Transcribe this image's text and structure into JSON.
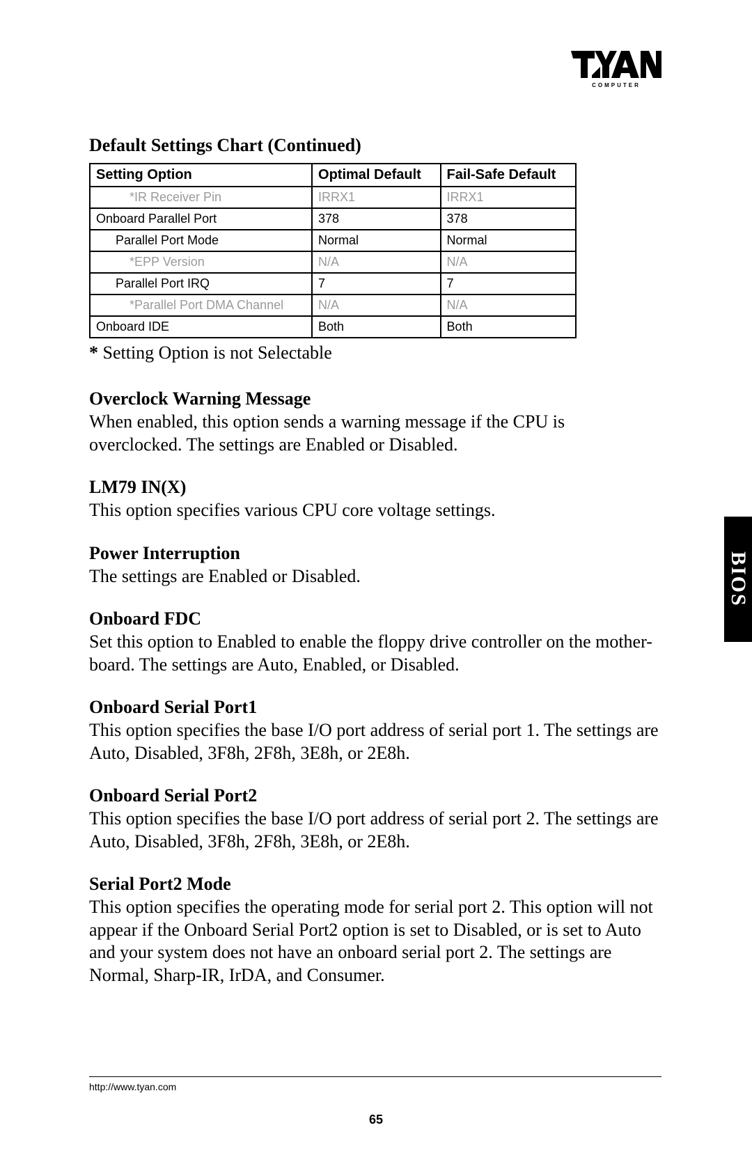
{
  "logo": {
    "brand": "TYAN",
    "subtitle": "COMPUTER"
  },
  "sideTab": "BIOS",
  "sectionTitle": "Default Settings Chart  (Continued)",
  "table": {
    "headers": [
      "Setting Option",
      "Optimal Default",
      "Fail-Safe Default"
    ],
    "rows": [
      {
        "label": "*IR Receiver Pin",
        "indent": 2,
        "grey": true,
        "v1": "IRRX1",
        "v2": "IRRX1"
      },
      {
        "label": "Onboard Parallel Port",
        "indent": 0,
        "grey": false,
        "v1": "378",
        "v2": "378"
      },
      {
        "label": "Parallel Port Mode",
        "indent": 1,
        "grey": false,
        "v1": "Normal",
        "v2": "Normal"
      },
      {
        "label": "*EPP Version",
        "indent": 2,
        "grey": true,
        "v1": "N/A",
        "v2": "N/A"
      },
      {
        "label": "Parallel Port IRQ",
        "indent": 1,
        "grey": false,
        "v1": "7",
        "v2": "7"
      },
      {
        "label": "*Parallel Port DMA Channel",
        "indent": 2,
        "grey": true,
        "v1": "N/A",
        "v2": "N/A"
      },
      {
        "label": "Onboard IDE",
        "indent": 0,
        "grey": false,
        "v1": "Both",
        "v2": "Both"
      }
    ]
  },
  "noteBold": "* ",
  "noteText": "Setting Option is not Selectable",
  "blocks": [
    {
      "title": "Overclock Warning Message",
      "body": "When enabled, this option sends a warning message if the CPU is overclocked.  The settings are Enabled or Disabled."
    },
    {
      "title": "LM79 IN(X)",
      "body": "This option specifies various CPU core voltage settings."
    },
    {
      "title": "Power Interruption",
      "body": "The settings are Enabled or Disabled."
    },
    {
      "title": "Onboard FDC",
      "body": "Set this option to Enabled to enable the floppy drive controller on the mother-board. The settings are Auto, Enabled, or Disabled."
    },
    {
      "title": "Onboard Serial Port1",
      "body": "This option specifies the base I/O port address of serial port 1. The settings are Auto, Disabled, 3F8h, 2F8h, 3E8h, or 2E8h."
    },
    {
      "title": "Onboard Serial Port2",
      "body": "This option specifies the base I/O port address of serial port 2. The settings are Auto, Disabled, 3F8h, 2F8h, 3E8h, or 2E8h."
    },
    {
      "title": "Serial Port2 Mode",
      "body": "This option specifies the operating mode for serial port 2.  This option will not appear if the Onboard Serial Port2 option is set to Disabled, or is set to Auto and your system does not have an onboard serial port 2. The settings are Normal, Sharp-IR, IrDA, and Consumer."
    }
  ],
  "footerUrl": "http://www.tyan.com",
  "pageNumber": "65"
}
